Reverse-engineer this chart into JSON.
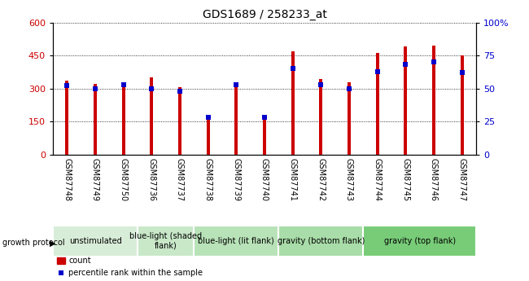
{
  "title": "GDS1689 / 258233_at",
  "samples": [
    "GSM87748",
    "GSM87749",
    "GSM87750",
    "GSM87736",
    "GSM87737",
    "GSM87738",
    "GSM87739",
    "GSM87740",
    "GSM87741",
    "GSM87742",
    "GSM87743",
    "GSM87744",
    "GSM87745",
    "GSM87746",
    "GSM87747"
  ],
  "counts": [
    335,
    320,
    325,
    350,
    305,
    175,
    330,
    175,
    470,
    345,
    330,
    460,
    490,
    495,
    450
  ],
  "percentiles": [
    52,
    50,
    53,
    50,
    48,
    28,
    53,
    28,
    65,
    53,
    50,
    63,
    68,
    70,
    62
  ],
  "ylim_left": [
    0,
    600
  ],
  "ylim_right": [
    0,
    100
  ],
  "yticks_left": [
    0,
    150,
    300,
    450,
    600
  ],
  "yticks_right": [
    0,
    25,
    50,
    75,
    100
  ],
  "groups": [
    {
      "label": "unstimulated",
      "start": 0,
      "end": 3,
      "color": "#d8edd8"
    },
    {
      "label": "blue-light (shaded\nflank)",
      "start": 3,
      "end": 5,
      "color": "#c8e8c8"
    },
    {
      "label": "blue-light (lit flank)",
      "start": 5,
      "end": 8,
      "color": "#b8e2b8"
    },
    {
      "label": "gravity (bottom flank)",
      "start": 8,
      "end": 11,
      "color": "#a8dca8"
    },
    {
      "label": "gravity (top flank)",
      "start": 11,
      "end": 15,
      "color": "#78cc78"
    }
  ],
  "bar_color": "#cc0000",
  "pct_color": "#0000cc",
  "plot_bg": "#ffffff",
  "tick_bg": "#d0d0d0",
  "tick_label_color_left": "#cc0000",
  "tick_label_color_right": "#0000cc",
  "group_label_fontsize": 7,
  "sample_fontsize": 7,
  "bar_width": 0.12
}
